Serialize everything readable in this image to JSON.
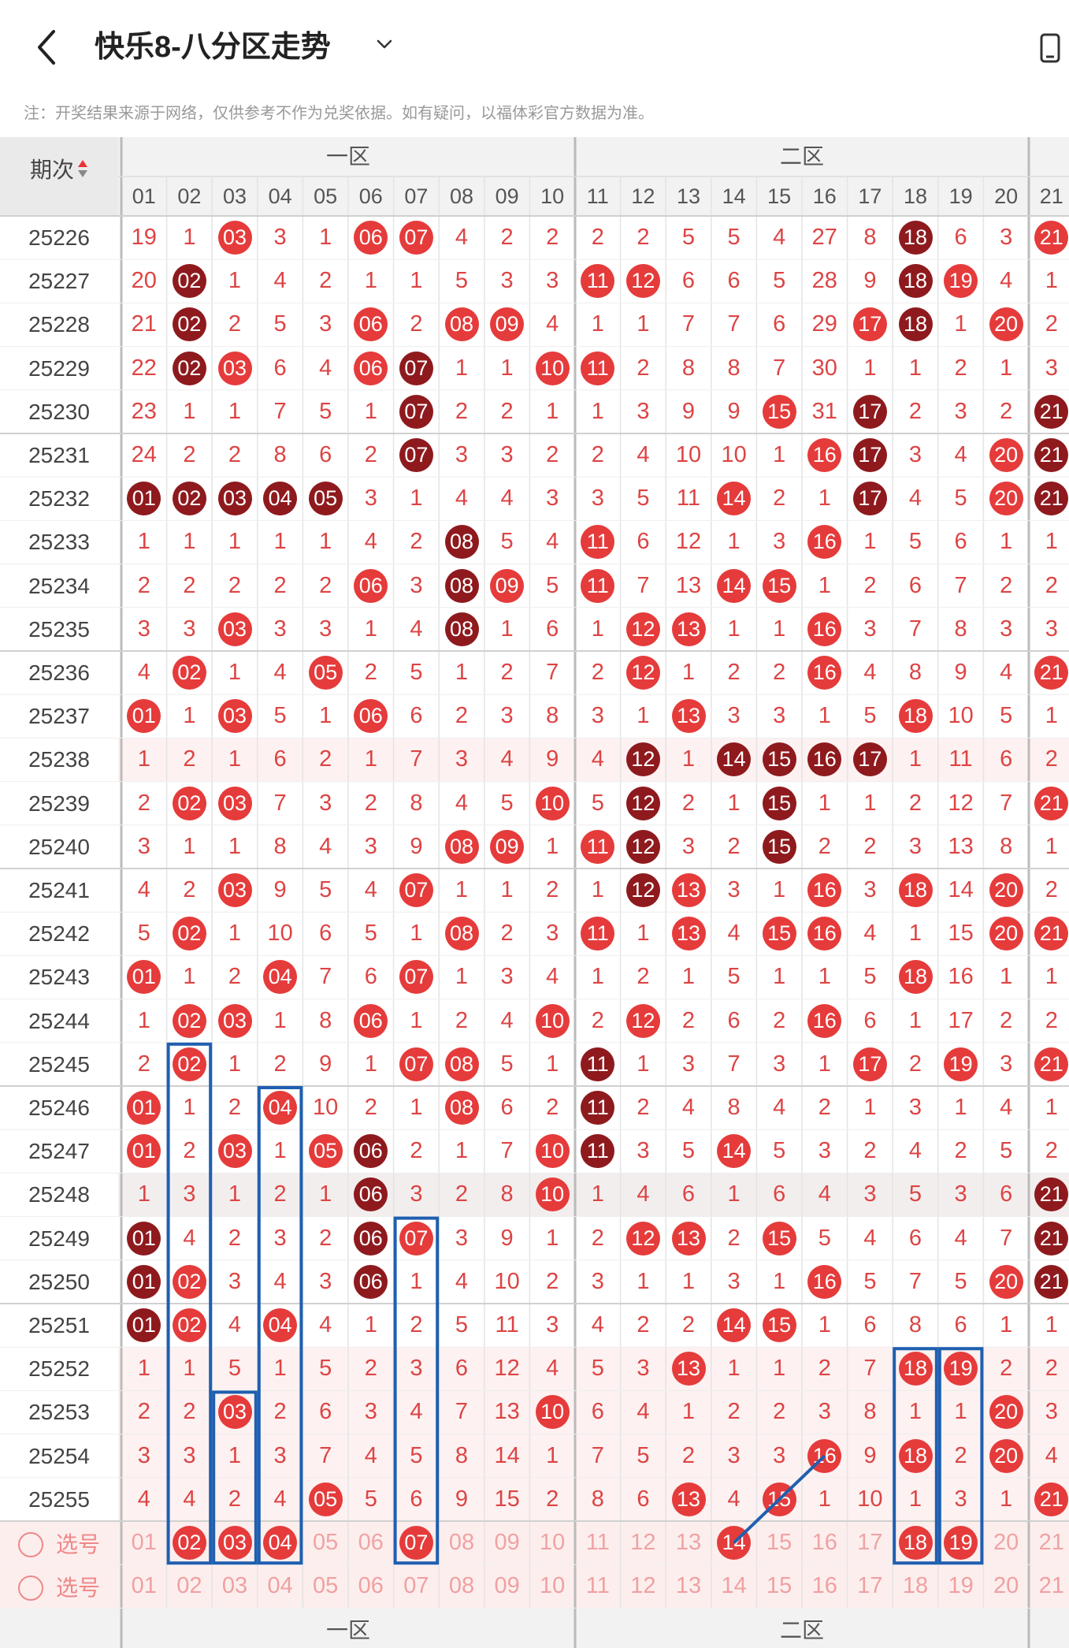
{
  "header": {
    "title": "快乐8-八分区走势",
    "note": "注：开奖结果来源于网络，仅供参考不作为兑奖依据。如有疑问，以福体彩官方数据为准。"
  },
  "table": {
    "period_label": "期次",
    "zones": [
      "一区",
      "二区"
    ],
    "columns": [
      "01",
      "02",
      "03",
      "04",
      "05",
      "06",
      "07",
      "08",
      "09",
      "10",
      "11",
      "12",
      "13",
      "14",
      "15",
      "16",
      "17",
      "18",
      "19",
      "20",
      "21"
    ],
    "pick_label": "选号",
    "rows": [
      {
        "period": "25226",
        "cells": [
          "19",
          "1",
          "03",
          "3",
          "1",
          "06",
          "07",
          "4",
          "2",
          "2",
          "2",
          "2",
          "5",
          "5",
          "4",
          "27",
          "8",
          "18",
          "6",
          "3",
          "21"
        ],
        "hits": [
          "03",
          "06",
          "07",
          "18",
          "21"
        ],
        "dark": [
          "18"
        ]
      },
      {
        "period": "25227",
        "cells": [
          "20",
          "02",
          "1",
          "4",
          "2",
          "1",
          "1",
          "5",
          "3",
          "3",
          "11",
          "12",
          "6",
          "6",
          "5",
          "28",
          "9",
          "18",
          "19",
          "4",
          "1"
        ],
        "hits": [
          "02",
          "11",
          "12",
          "18",
          "19"
        ],
        "dark": [
          "02",
          "18"
        ]
      },
      {
        "period": "25228",
        "cells": [
          "21",
          "02",
          "2",
          "5",
          "3",
          "06",
          "2",
          "08",
          "09",
          "4",
          "1",
          "1",
          "7",
          "7",
          "6",
          "29",
          "17",
          "18",
          "1",
          "20",
          "2"
        ],
        "hits": [
          "02",
          "06",
          "08",
          "09",
          "17",
          "18",
          "20"
        ],
        "dark": [
          "02",
          "18"
        ]
      },
      {
        "period": "25229",
        "cells": [
          "22",
          "02",
          "03",
          "6",
          "4",
          "06",
          "07",
          "1",
          "1",
          "10",
          "11",
          "2",
          "8",
          "8",
          "7",
          "30",
          "1",
          "1",
          "2",
          "1",
          "3"
        ],
        "hits": [
          "02",
          "03",
          "06",
          "07",
          "10",
          "11"
        ],
        "dark": [
          "02",
          "07"
        ]
      },
      {
        "period": "25230",
        "cells": [
          "23",
          "1",
          "1",
          "7",
          "5",
          "1",
          "07",
          "2",
          "2",
          "1",
          "1",
          "3",
          "9",
          "9",
          "15",
          "31",
          "17",
          "2",
          "3",
          "2",
          "21"
        ],
        "hits": [
          "07",
          "15",
          "17",
          "21"
        ],
        "dark": [
          "07",
          "17",
          "21"
        ]
      },
      {
        "period": "25231",
        "cells": [
          "24",
          "2",
          "2",
          "8",
          "6",
          "2",
          "07",
          "3",
          "3",
          "2",
          "2",
          "4",
          "10",
          "10",
          "1",
          "16",
          "17",
          "3",
          "4",
          "20",
          "21"
        ],
        "hits": [
          "07",
          "16",
          "17",
          "20",
          "21"
        ],
        "dark": [
          "07",
          "17",
          "21"
        ]
      },
      {
        "period": "25232",
        "cells": [
          "01",
          "02",
          "03",
          "04",
          "05",
          "3",
          "1",
          "4",
          "4",
          "3",
          "3",
          "5",
          "11",
          "14",
          "2",
          "1",
          "17",
          "4",
          "5",
          "20",
          "21"
        ],
        "hits": [
          "01",
          "02",
          "03",
          "04",
          "05",
          "14",
          "17",
          "20",
          "21"
        ],
        "dark": [
          "01",
          "02",
          "03",
          "04",
          "05",
          "17",
          "21"
        ]
      },
      {
        "period": "25233",
        "cells": [
          "1",
          "1",
          "1",
          "1",
          "1",
          "4",
          "2",
          "08",
          "5",
          "4",
          "11",
          "6",
          "12",
          "1",
          "3",
          "16",
          "1",
          "5",
          "6",
          "1",
          "1"
        ],
        "hits": [
          "08",
          "11",
          "16"
        ],
        "dark": [
          "08"
        ]
      },
      {
        "period": "25234",
        "cells": [
          "2",
          "2",
          "2",
          "2",
          "2",
          "06",
          "3",
          "08",
          "09",
          "5",
          "11",
          "7",
          "13",
          "14",
          "15",
          "1",
          "2",
          "6",
          "7",
          "2",
          "2"
        ],
        "hits": [
          "06",
          "08",
          "09",
          "11",
          "14",
          "15"
        ],
        "dark": [
          "08"
        ]
      },
      {
        "period": "25235",
        "cells": [
          "3",
          "3",
          "03",
          "3",
          "3",
          "1",
          "4",
          "08",
          "1",
          "6",
          "1",
          "12",
          "13",
          "1",
          "1",
          "16",
          "3",
          "7",
          "8",
          "3",
          "3"
        ],
        "hits": [
          "03",
          "08",
          "12",
          "13",
          "16"
        ],
        "dark": [
          "08"
        ]
      },
      {
        "period": "25236",
        "cells": [
          "4",
          "02",
          "1",
          "4",
          "05",
          "2",
          "5",
          "1",
          "2",
          "7",
          "2",
          "12",
          "1",
          "2",
          "2",
          "16",
          "4",
          "8",
          "9",
          "4",
          "21"
        ],
        "hits": [
          "02",
          "05",
          "12",
          "16",
          "21"
        ],
        "dark": []
      },
      {
        "period": "25237",
        "cells": [
          "01",
          "1",
          "03",
          "5",
          "1",
          "06",
          "6",
          "2",
          "3",
          "8",
          "3",
          "1",
          "13",
          "3",
          "3",
          "1",
          "5",
          "18",
          "10",
          "5",
          "1"
        ],
        "hits": [
          "01",
          "03",
          "06",
          "13",
          "18"
        ],
        "dark": []
      },
      {
        "period": "25238",
        "cells": [
          "1",
          "2",
          "1",
          "6",
          "2",
          "1",
          "7",
          "3",
          "4",
          "9",
          "4",
          "12",
          "1",
          "14",
          "15",
          "16",
          "17",
          "1",
          "11",
          "6",
          "2"
        ],
        "hits": [
          "12",
          "14",
          "15",
          "16",
          "17"
        ],
        "dark": [
          "12",
          "14",
          "15",
          "16",
          "17"
        ]
      },
      {
        "period": "25239",
        "cells": [
          "2",
          "02",
          "03",
          "7",
          "3",
          "2",
          "8",
          "4",
          "5",
          "10",
          "5",
          "12",
          "2",
          "1",
          "15",
          "1",
          "1",
          "2",
          "12",
          "7",
          "21"
        ],
        "hits": [
          "02",
          "03",
          "10",
          "12",
          "15",
          "21"
        ],
        "dark": [
          "12",
          "15"
        ]
      },
      {
        "period": "25240",
        "cells": [
          "3",
          "1",
          "1",
          "8",
          "4",
          "3",
          "9",
          "08",
          "09",
          "1",
          "11",
          "12",
          "3",
          "2",
          "15",
          "2",
          "2",
          "3",
          "13",
          "8",
          "1"
        ],
        "hits": [
          "08",
          "09",
          "11",
          "12",
          "15"
        ],
        "dark": [
          "12",
          "15"
        ]
      },
      {
        "period": "25241",
        "cells": [
          "4",
          "2",
          "03",
          "9",
          "5",
          "4",
          "07",
          "1",
          "1",
          "2",
          "1",
          "12",
          "13",
          "3",
          "1",
          "16",
          "3",
          "18",
          "14",
          "20",
          "2"
        ],
        "hits": [
          "03",
          "07",
          "12",
          "13",
          "16",
          "18",
          "20"
        ],
        "dark": [
          "12"
        ]
      },
      {
        "period": "25242",
        "cells": [
          "5",
          "02",
          "1",
          "10",
          "6",
          "5",
          "1",
          "08",
          "2",
          "3",
          "11",
          "1",
          "13",
          "4",
          "15",
          "16",
          "4",
          "1",
          "15",
          "20",
          "21"
        ],
        "hits": [
          "02",
          "08",
          "11",
          "13",
          "15",
          "16",
          "20",
          "21"
        ],
        "dark": []
      },
      {
        "period": "25243",
        "cells": [
          "01",
          "1",
          "2",
          "04",
          "7",
          "6",
          "07",
          "1",
          "3",
          "4",
          "1",
          "2",
          "1",
          "5",
          "1",
          "1",
          "5",
          "18",
          "16",
          "1",
          "1"
        ],
        "hits": [
          "01",
          "04",
          "07",
          "18"
        ],
        "dark": []
      },
      {
        "period": "25244",
        "cells": [
          "1",
          "02",
          "03",
          "1",
          "8",
          "06",
          "1",
          "2",
          "4",
          "10",
          "2",
          "12",
          "2",
          "6",
          "2",
          "16",
          "6",
          "1",
          "17",
          "2",
          "2"
        ],
        "hits": [
          "02",
          "03",
          "06",
          "10",
          "12",
          "16"
        ],
        "dark": []
      },
      {
        "period": "25245",
        "cells": [
          "2",
          "02",
          "1",
          "2",
          "9",
          "1",
          "07",
          "08",
          "5",
          "1",
          "11",
          "1",
          "3",
          "7",
          "3",
          "1",
          "17",
          "2",
          "19",
          "3",
          "21"
        ],
        "hits": [
          "02",
          "07",
          "08",
          "11",
          "17",
          "19",
          "21"
        ],
        "dark": [
          "11"
        ]
      },
      {
        "period": "25246",
        "cells": [
          "01",
          "1",
          "2",
          "04",
          "10",
          "2",
          "1",
          "08",
          "6",
          "2",
          "11",
          "2",
          "4",
          "8",
          "4",
          "2",
          "1",
          "3",
          "1",
          "4",
          "1"
        ],
        "hits": [
          "01",
          "04",
          "08",
          "11"
        ],
        "dark": [
          "11"
        ]
      },
      {
        "period": "25247",
        "cells": [
          "01",
          "2",
          "03",
          "1",
          "05",
          "06",
          "2",
          "1",
          "7",
          "10",
          "11",
          "3",
          "5",
          "14",
          "5",
          "3",
          "2",
          "4",
          "2",
          "5",
          "2"
        ],
        "hits": [
          "01",
          "03",
          "05",
          "06",
          "10",
          "11",
          "14"
        ],
        "dark": [
          "06",
          "11"
        ]
      },
      {
        "period": "25248",
        "cells": [
          "1",
          "3",
          "1",
          "2",
          "1",
          "06",
          "3",
          "2",
          "8",
          "10",
          "1",
          "4",
          "6",
          "1",
          "6",
          "4",
          "3",
          "5",
          "3",
          "6",
          "21"
        ],
        "hits": [
          "06",
          "10",
          "21"
        ],
        "dark": [
          "06",
          "21"
        ]
      },
      {
        "period": "25249",
        "cells": [
          "01",
          "4",
          "2",
          "3",
          "2",
          "06",
          "07",
          "3",
          "9",
          "1",
          "2",
          "12",
          "13",
          "2",
          "15",
          "5",
          "4",
          "6",
          "4",
          "7",
          "21"
        ],
        "hits": [
          "01",
          "06",
          "07",
          "12",
          "13",
          "15",
          "21"
        ],
        "dark": [
          "01",
          "06",
          "21"
        ]
      },
      {
        "period": "25250",
        "cells": [
          "01",
          "02",
          "3",
          "4",
          "3",
          "06",
          "1",
          "4",
          "10",
          "2",
          "3",
          "1",
          "1",
          "3",
          "1",
          "16",
          "5",
          "7",
          "5",
          "20",
          "21"
        ],
        "hits": [
          "01",
          "02",
          "06",
          "16",
          "20",
          "21"
        ],
        "dark": [
          "01",
          "06",
          "21"
        ]
      },
      {
        "period": "25251",
        "cells": [
          "01",
          "02",
          "4",
          "04",
          "4",
          "1",
          "2",
          "5",
          "11",
          "3",
          "4",
          "2",
          "2",
          "14",
          "15",
          "1",
          "6",
          "8",
          "6",
          "1",
          "1"
        ],
        "hits": [
          "01",
          "02",
          "04",
          "14",
          "15"
        ],
        "dark": [
          "01"
        ]
      },
      {
        "period": "25252",
        "cells": [
          "1",
          "1",
          "5",
          "1",
          "5",
          "2",
          "3",
          "6",
          "12",
          "4",
          "5",
          "3",
          "13",
          "1",
          "1",
          "2",
          "7",
          "18",
          "19",
          "2",
          "2"
        ],
        "hits": [
          "13",
          "18",
          "19"
        ],
        "dark": []
      },
      {
        "period": "25253",
        "cells": [
          "2",
          "2",
          "03",
          "2",
          "6",
          "3",
          "4",
          "7",
          "13",
          "10",
          "6",
          "4",
          "1",
          "2",
          "2",
          "3",
          "8",
          "1",
          "1",
          "20",
          "3"
        ],
        "hits": [
          "03",
          "10",
          "20"
        ],
        "dark": []
      },
      {
        "period": "25254",
        "cells": [
          "3",
          "3",
          "1",
          "3",
          "7",
          "4",
          "5",
          "8",
          "14",
          "1",
          "7",
          "5",
          "2",
          "3",
          "3",
          "16",
          "9",
          "18",
          "2",
          "20",
          "4"
        ],
        "hits": [
          "16",
          "18",
          "20"
        ],
        "dark": []
      },
      {
        "period": "25255",
        "cells": [
          "4",
          "4",
          "2",
          "4",
          "05",
          "5",
          "6",
          "9",
          "15",
          "2",
          "8",
          "6",
          "13",
          "4",
          "15",
          "1",
          "10",
          "1",
          "3",
          "1",
          "21"
        ],
        "hits": [
          "05",
          "13",
          "15",
          "21"
        ],
        "dark": []
      }
    ],
    "picked": [
      "02",
      "03",
      "04",
      "07",
      "14",
      "18",
      "19"
    ]
  }
}
